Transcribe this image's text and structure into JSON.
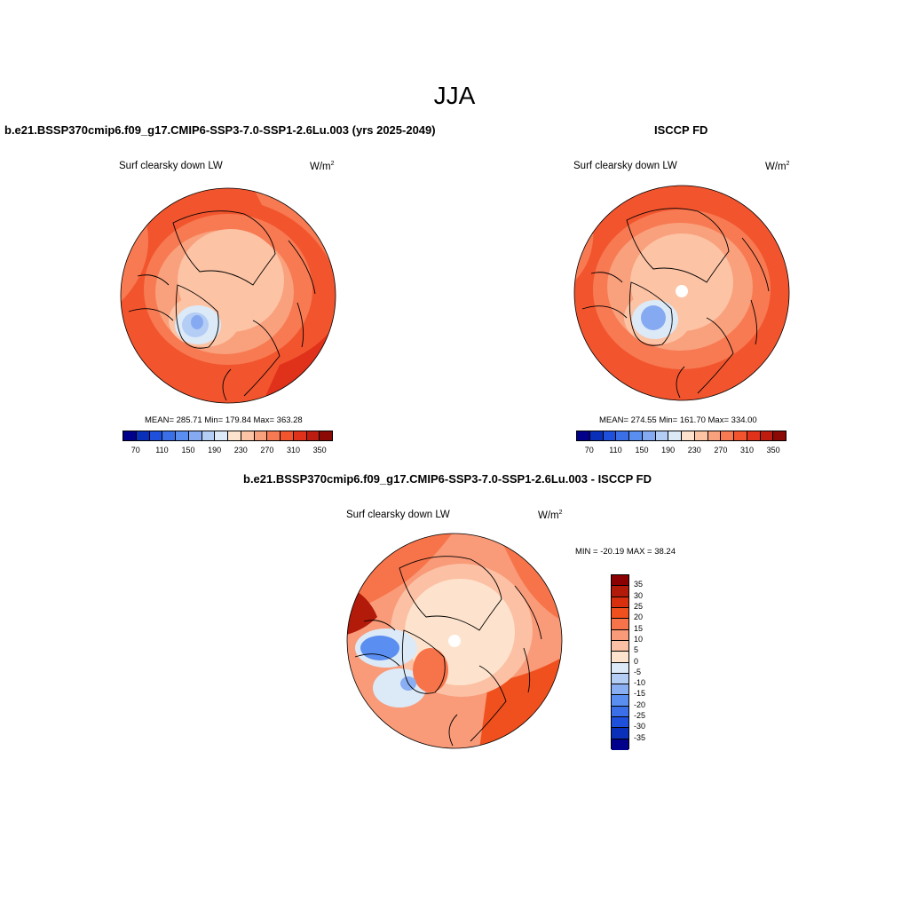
{
  "season": "JJA",
  "panels": [
    {
      "title": "b.e21.BSSP370cmip6.f09_g17.CMIP6-SSP3-7.0-SSP1-2.6Lu.003 (yrs 2025-2049)",
      "variable": "Surf clearsky down LW",
      "units": "W/m",
      "units_exp": "2",
      "stats": "MEAN= 285.71  Min= 179.84  Max= 363.28"
    },
    {
      "title": "ISCCP FD",
      "variable": "Surf clearsky down LW",
      "units": "W/m",
      "units_exp": "2",
      "stats": "MEAN= 274.55  Min= 161.70  Max= 334.00"
    },
    {
      "title": "b.e21.BSSP370cmip6.f09_g17.CMIP6-SSP3-7.0-SSP1-2.6Lu.003 - ISCCP FD",
      "variable": "Surf clearsky down LW",
      "units": "W/m",
      "units_exp": "2",
      "stats": "MIN = -20.19 MAX =  38.24"
    }
  ],
  "abs_colorbar": {
    "colors": [
      "#00008b",
      "#0a2fb8",
      "#1e50dc",
      "#3a6fe8",
      "#5a8ef0",
      "#86aaf2",
      "#b4cdf5",
      "#dce9f7",
      "#fde3cd",
      "#fcc3a5",
      "#f9a07c",
      "#f77a52",
      "#f2552e",
      "#e0311a",
      "#bf1c10",
      "#8b0a05"
    ],
    "labels": [
      "70",
      "110",
      "150",
      "190",
      "230",
      "270",
      "310",
      "350"
    ]
  },
  "diff_colorbar": {
    "colors": [
      "#8b0000",
      "#b21a0a",
      "#d8300f",
      "#f0501e",
      "#f7744a",
      "#f99a78",
      "#fcc0a4",
      "#fde3cd",
      "#dce9f7",
      "#b4cdf5",
      "#8aaef2",
      "#5a8ef0",
      "#3a6fe8",
      "#1e50dc",
      "#0a2fb8",
      "#00008b"
    ],
    "labels": [
      "35",
      "30",
      "25",
      "20",
      "15",
      "10",
      "5",
      "0",
      "-5",
      "-10",
      "-15",
      "-20",
      "-25",
      "-30",
      "-35"
    ]
  }
}
